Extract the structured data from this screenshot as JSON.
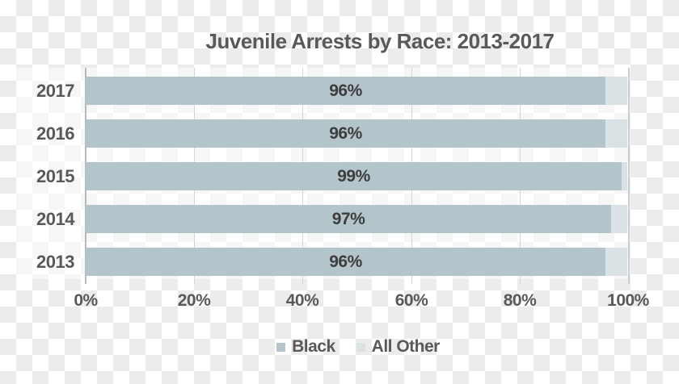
{
  "title": "Juvenile Arrests by Race: 2013-2017",
  "chart_data": {
    "type": "bar",
    "orientation": "horizontal",
    "stacked": true,
    "title": "Juvenile Arrests by Race: 2013-2017",
    "categories": [
      "2017",
      "2016",
      "2015",
      "2014",
      "2013"
    ],
    "series": [
      {
        "name": "Black",
        "values": [
          96,
          96,
          99,
          97,
          96
        ],
        "color": "#b3c5cb"
      },
      {
        "name": "All Other",
        "values": [
          4,
          4,
          1,
          3,
          4
        ],
        "color": "#dae2e5"
      }
    ],
    "bar_labels": [
      "96%",
      "96%",
      "99%",
      "97%",
      "96%"
    ],
    "x_tick_labels": [
      "0%",
      "20%",
      "40%",
      "60%",
      "80%",
      "100%"
    ],
    "xlim": [
      0,
      100
    ],
    "grid": true,
    "legend_position": "bottom"
  },
  "legend": {
    "items": [
      {
        "label": "Black",
        "color": "#b3c5cb"
      },
      {
        "label": "All Other",
        "color": "#dae2e5"
      }
    ]
  },
  "colors": {
    "black_series": "#b3c5cb",
    "all_other_series": "#dae2e5",
    "text": "#595959",
    "bar_label_text": "#3d3d3d",
    "gridline": "#d2d6d7",
    "axis_line": "#b5babb",
    "checkerboard_gray": "#ececec"
  }
}
